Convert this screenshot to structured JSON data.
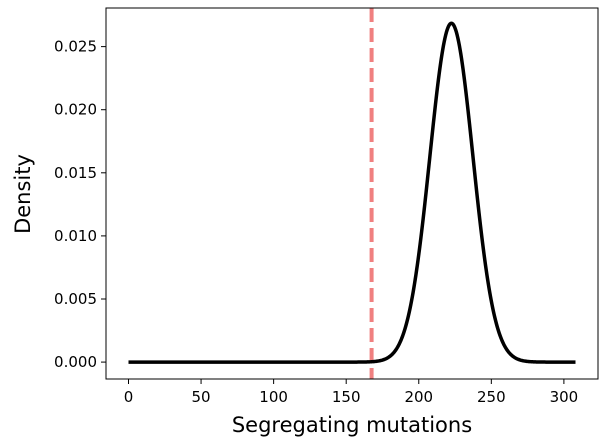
{
  "chart_data": {
    "type": "line",
    "title": "",
    "xlabel": "Segregating mutations",
    "ylabel": "Density",
    "xlim": [
      -15.5,
      323.5
    ],
    "ylim": [
      -0.00134,
      0.02806
    ],
    "xticks": [
      0,
      50,
      100,
      150,
      200,
      250,
      300
    ],
    "xtick_labels": [
      "0",
      "50",
      "100",
      "150",
      "200",
      "250",
      "300"
    ],
    "yticks": [
      0.0,
      0.005,
      0.01,
      0.015,
      0.02,
      0.025
    ],
    "ytick_labels": [
      "0.000",
      "0.005",
      "0.010",
      "0.015",
      "0.020",
      "0.025"
    ],
    "grid": false,
    "series": [
      {
        "color": "#000000",
        "shape": "normal",
        "x_range": [
          0,
          308
        ],
        "mean": 222.5,
        "sd": 14.85,
        "peak_density": 0.02685
      }
    ],
    "reference_lines": [
      {
        "orientation": "vertical",
        "x": 167.5,
        "color": "#f08080",
        "style": "dashed"
      }
    ]
  }
}
